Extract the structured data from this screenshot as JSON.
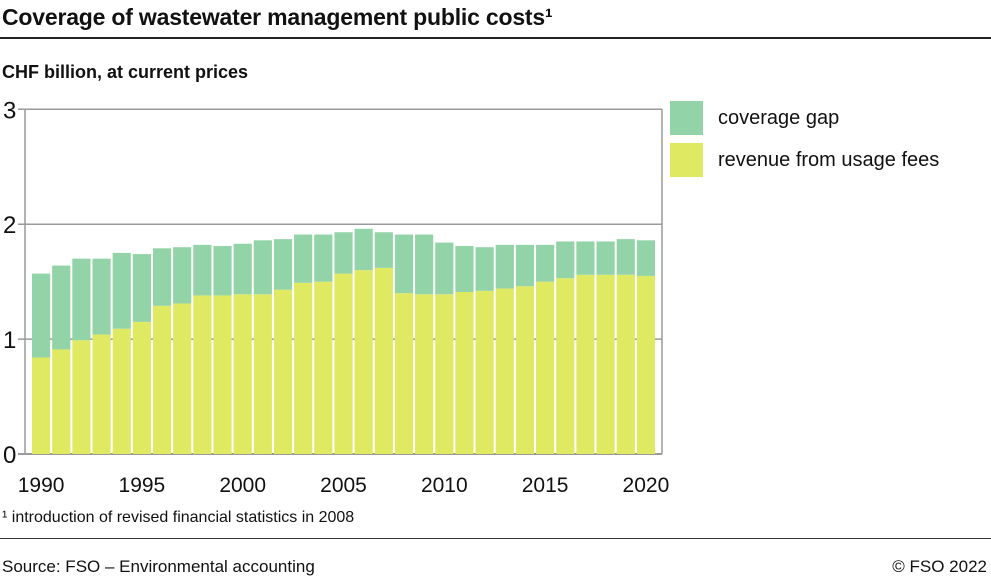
{
  "header": {
    "title": "Coverage of wastewater management public costs¹"
  },
  "footer": {
    "footnote": "¹   introduction of revised financial statistics in 2008",
    "source": "Source: FSO – Environmental accounting",
    "copyright": "© FSO 2022"
  },
  "chart_data": {
    "type": "bar",
    "stacked": true,
    "subtitle": "CHF billion, at current prices",
    "ylim": [
      0,
      3
    ],
    "yticks": [
      "0",
      "1",
      "2",
      "3"
    ],
    "xticks": [
      "1990",
      "1995",
      "2000",
      "2005",
      "2010",
      "2015",
      "2020"
    ],
    "grid": true,
    "legend_position": "right",
    "categories": [
      1990,
      1991,
      1992,
      1993,
      1994,
      1995,
      1996,
      1997,
      1998,
      1999,
      2000,
      2001,
      2002,
      2003,
      2004,
      2005,
      2006,
      2007,
      2008,
      2009,
      2010,
      2011,
      2012,
      2013,
      2014,
      2015,
      2016,
      2017,
      2018,
      2019,
      2020
    ],
    "series": [
      {
        "name": "revenue from usage fees",
        "color": "#e0e962",
        "values": [
          0.84,
          0.91,
          0.99,
          1.04,
          1.09,
          1.15,
          1.29,
          1.31,
          1.38,
          1.38,
          1.39,
          1.39,
          1.43,
          1.49,
          1.5,
          1.57,
          1.6,
          1.62,
          1.4,
          1.39,
          1.39,
          1.41,
          1.42,
          1.44,
          1.46,
          1.5,
          1.53,
          1.56,
          1.56,
          1.56,
          1.55
        ]
      },
      {
        "name": "coverage gap",
        "color": "#93d3a8",
        "values": [
          0.73,
          0.73,
          0.71,
          0.66,
          0.66,
          0.59,
          0.5,
          0.49,
          0.44,
          0.43,
          0.44,
          0.47,
          0.44,
          0.42,
          0.41,
          0.36,
          0.36,
          0.31,
          0.51,
          0.52,
          0.45,
          0.4,
          0.38,
          0.38,
          0.36,
          0.32,
          0.32,
          0.29,
          0.29,
          0.31,
          0.31
        ]
      }
    ],
    "legend_order": [
      "coverage gap",
      "revenue from usage fees"
    ]
  }
}
